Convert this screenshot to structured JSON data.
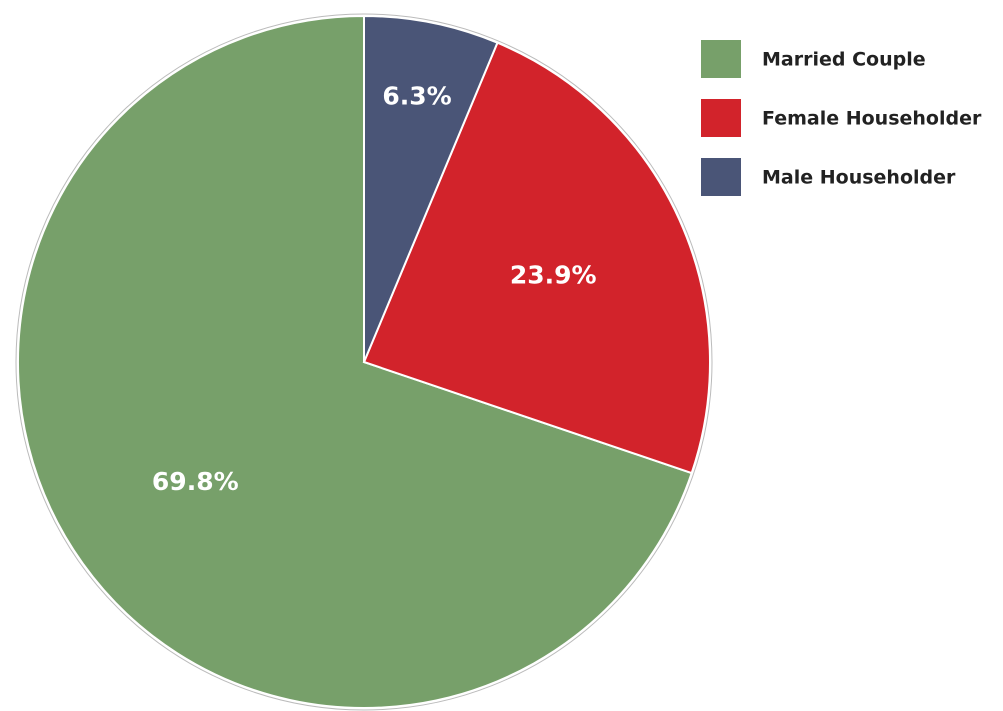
{
  "chart_data": {
    "type": "pie",
    "categories": [
      "Married Couple",
      "Female Householder",
      "Male Householder"
    ],
    "values": [
      69.8,
      23.9,
      6.3
    ],
    "value_labels": [
      "69.8%",
      "23.9%",
      "6.3%"
    ],
    "colors": [
      "#77a06a",
      "#d2232b",
      "#4a5577"
    ],
    "legend": "top-right"
  }
}
